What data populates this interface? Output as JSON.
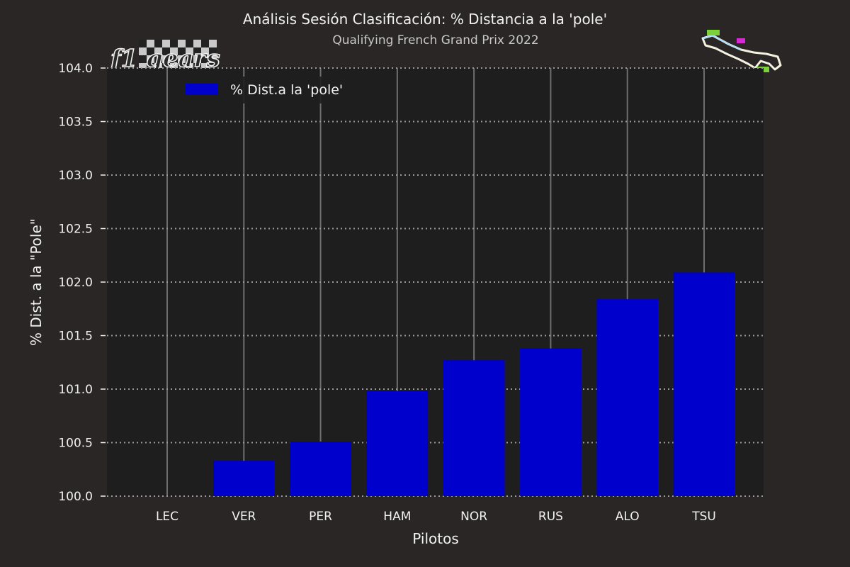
{
  "logo": {
    "text": "f1 gears"
  },
  "chart_data": {
    "type": "bar",
    "title": "Análisis Sesión Clasificación: % Distancia a la 'pole'",
    "subtitle": "Qualifying French Grand Prix 2022",
    "xlabel": "Pilotos",
    "ylabel": "% Dist. a la \"Pole\"",
    "categories": [
      "LEC",
      "VER",
      "PER",
      "HAM",
      "NOR",
      "RUS",
      "ALO",
      "TSU"
    ],
    "series": [
      {
        "name": "% Dist.a la 'pole'",
        "values": [
          100.0,
          100.33,
          100.51,
          100.98,
          101.27,
          101.38,
          101.84,
          102.09
        ],
        "color": "#0000cc"
      }
    ],
    "ylim": [
      100.0,
      104.0
    ],
    "yticks": [
      "100.0",
      "100.5",
      "101.0",
      "101.5",
      "102.0",
      "102.5",
      "103.0",
      "103.5",
      "104.0"
    ],
    "grid": {
      "x": "solid",
      "y": "dotted"
    },
    "legend_position": "top-left",
    "colors": {
      "figure_background": "#292625",
      "plot_background": "#1f1e1e",
      "bar": "#0000cc",
      "text": "#f2f2f2",
      "grid": "#8a8a8a"
    }
  }
}
